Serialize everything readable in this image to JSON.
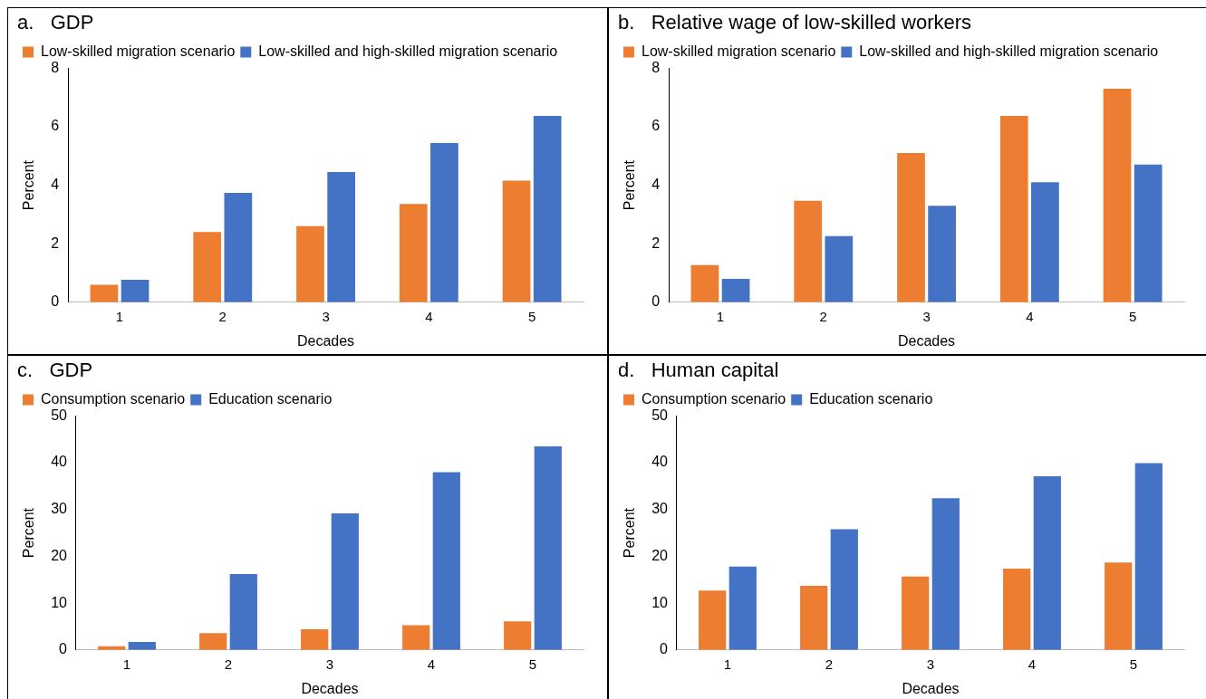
{
  "chart_data": [
    {
      "type": "bar",
      "title": "a.   GDP",
      "xlabel": "Decades",
      "ylabel": "Percent",
      "categories": [
        "1",
        "2",
        "3",
        "4",
        "5"
      ],
      "ylim": [
        0,
        8
      ],
      "yticks": [
        0,
        2,
        4,
        6,
        8
      ],
      "grid": false,
      "legend": "top left",
      "series": [
        {
          "name": "Low-skilled migration scenario",
          "color": "#ed7d31",
          "values": [
            0.6,
            2.4,
            2.6,
            3.36,
            4.16
          ]
        },
        {
          "name": "Low-skilled and high-skilled migration scenario",
          "color": "#4472c4",
          "values": [
            0.77,
            3.74,
            4.45,
            5.44,
            6.37
          ]
        }
      ]
    },
    {
      "type": "bar",
      "title": "b.   Relative wage of low-skilled workers",
      "xlabel": "Decades",
      "ylabel": "Percent",
      "categories": [
        "1",
        "2",
        "3",
        "4",
        "5"
      ],
      "ylim": [
        0,
        8
      ],
      "yticks": [
        0,
        2,
        4,
        6,
        8
      ],
      "grid": false,
      "legend": "top left",
      "series": [
        {
          "name": "Low-skilled migration scenario",
          "color": "#ed7d31",
          "values": [
            1.27,
            3.47,
            5.1,
            6.37,
            7.3
          ]
        },
        {
          "name": "Low-skilled and high-skilled migration scenario",
          "color": "#4472c4",
          "values": [
            0.8,
            2.26,
            3.3,
            4.1,
            4.71
          ]
        }
      ]
    },
    {
      "type": "bar",
      "title": "c.   GDP",
      "xlabel": "Decades",
      "ylabel": "Percent",
      "categories": [
        "1",
        "2",
        "3",
        "4",
        "5"
      ],
      "ylim": [
        0,
        50
      ],
      "yticks": [
        0,
        10,
        20,
        30,
        40,
        50
      ],
      "grid": false,
      "legend": "top left",
      "series": [
        {
          "name": "Consumption scenario",
          "color": "#ed7d31",
          "values": [
            0.8,
            3.6,
            4.4,
            5.3,
            6.1
          ]
        },
        {
          "name": "Education scenario",
          "color": "#4472c4",
          "values": [
            1.7,
            16.2,
            29.2,
            38,
            43.5
          ]
        }
      ]
    },
    {
      "type": "bar",
      "title": "d.   Human capital",
      "xlabel": "Decades",
      "ylabel": "Percent",
      "categories": [
        "1",
        "2",
        "3",
        "4",
        "5"
      ],
      "ylim": [
        0,
        50
      ],
      "yticks": [
        0,
        10,
        20,
        30,
        40,
        50
      ],
      "grid": false,
      "legend": "top left",
      "series": [
        {
          "name": "Consumption scenario",
          "color": "#ed7d31",
          "values": [
            12.7,
            13.7,
            15.7,
            17.4,
            18.7
          ]
        },
        {
          "name": "Education scenario",
          "color": "#4472c4",
          "values": [
            17.8,
            25.8,
            32.4,
            37.1,
            39.9
          ]
        }
      ]
    }
  ]
}
